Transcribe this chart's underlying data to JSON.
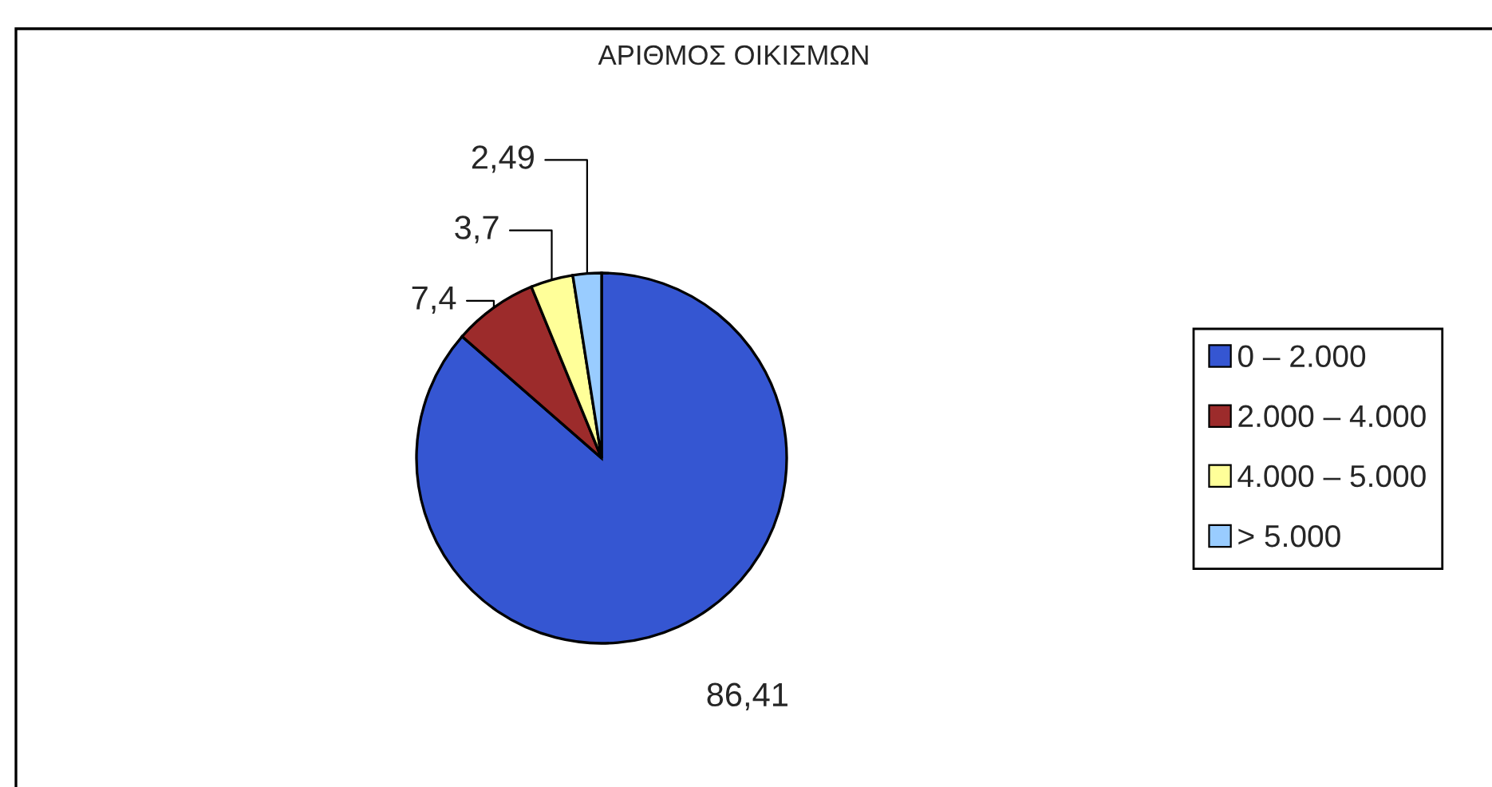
{
  "chart_data": {
    "type": "pie",
    "title": "ΑΡΙΘΜΟΣ ΟΙΚΙΣΜΩΝ",
    "categories": [
      "0 – 2.000",
      "2.000 – 4.000",
      "4.000 – 5.000",
      "> 5.000"
    ],
    "values": [
      86.41,
      7.4,
      3.7,
      2.49
    ],
    "value_labels": [
      "86,41",
      "7,4",
      "3,7",
      "2,49"
    ],
    "colors": [
      "#3556d2",
      "#9c2b2b",
      "#ffff99",
      "#99ccff"
    ],
    "legend": "right"
  }
}
